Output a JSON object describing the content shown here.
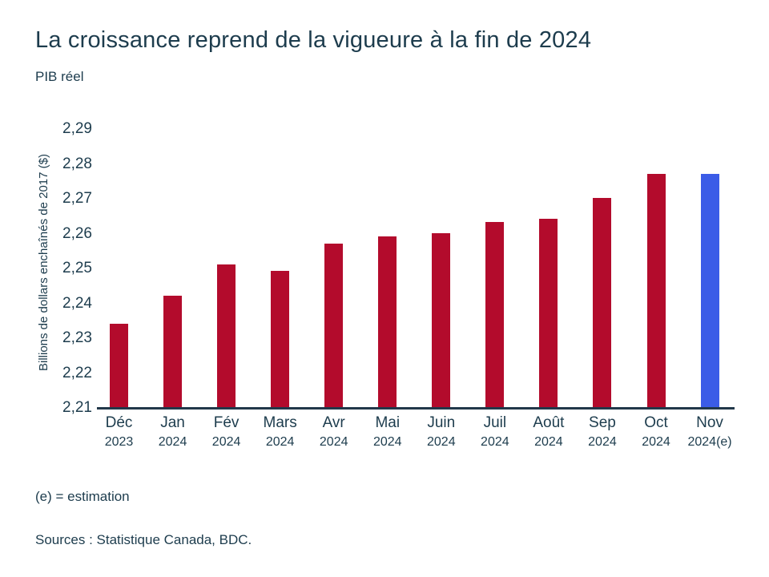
{
  "title": "La croissance reprend de la vigueure à la fin de 2024",
  "subtitle": "PIB réel",
  "footnote": "(e) = estimation",
  "sources": "Sources : Statistique Canada, BDC.",
  "colors": {
    "text_dark": "#1d3c4d",
    "axis_line": "#22384a",
    "bar_actual": "#b30b2c",
    "bar_estimate": "#3b5ce7"
  },
  "chart_data": {
    "type": "bar",
    "title": "La croissance reprend de la vigueure à la fin de 2024",
    "subtitle": "PIB réel",
    "xlabel": "",
    "ylabel": "Billions de dollars enchaînés de 2017 ($)",
    "ylim": [
      2.21,
      2.293
    ],
    "ytick_step": 0.01,
    "ytick_labels": [
      "2,21",
      "2,22",
      "2,23",
      "2,24",
      "2,25",
      "2,26",
      "2,27",
      "2,28",
      "2,29"
    ],
    "grid": false,
    "legend_position": "none",
    "categories": [
      {
        "month": "Déc",
        "year": "2023"
      },
      {
        "month": "Jan",
        "year": "2024"
      },
      {
        "month": "Fév",
        "year": "2024"
      },
      {
        "month": "Mars",
        "year": "2024"
      },
      {
        "month": "Avr",
        "year": "2024"
      },
      {
        "month": "Mai",
        "year": "2024"
      },
      {
        "month": "Juin",
        "year": "2024"
      },
      {
        "month": "Juil",
        "year": "2024"
      },
      {
        "month": "Août",
        "year": "2024"
      },
      {
        "month": "Sep",
        "year": "2024"
      },
      {
        "month": "Oct",
        "year": "2024"
      },
      {
        "month": "Nov",
        "year": "2024(e)"
      }
    ],
    "values": [
      2.234,
      2.242,
      2.251,
      2.249,
      2.257,
      2.259,
      2.26,
      2.263,
      2.264,
      2.27,
      2.277,
      2.277
    ],
    "estimated": [
      false,
      false,
      false,
      false,
      false,
      false,
      false,
      false,
      false,
      false,
      false,
      true
    ]
  }
}
